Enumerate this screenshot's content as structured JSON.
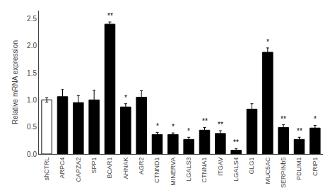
{
  "chart_data": {
    "type": "bar",
    "categories": [
      "shCTRL",
      "ARPC4",
      "CAPZA2",
      "SPP1",
      "BCAR1",
      "AHNAK",
      "AGR2",
      "CTNND1",
      "MINERVA",
      "LGALS3",
      "CTNNA1",
      "ITGAV",
      "LGALS4",
      "GLG1",
      "MUC5AC",
      "SERPINb5",
      "PDLIM1",
      "CRIP1"
    ],
    "values": [
      1.0,
      1.06,
      0.95,
      1.0,
      2.4,
      0.87,
      1.05,
      0.36,
      0.36,
      0.27,
      0.44,
      0.38,
      0.07,
      0.83,
      1.88,
      0.49,
      0.27,
      0.48
    ],
    "errors": [
      0.04,
      0.13,
      0.13,
      0.18,
      0.04,
      0.06,
      0.12,
      0.04,
      0.03,
      0.04,
      0.05,
      0.05,
      0.03,
      0.1,
      0.08,
      0.05,
      0.04,
      0.05
    ],
    "colors": [
      "white",
      "black",
      "black",
      "black",
      "black",
      "black",
      "black",
      "black",
      "black",
      "black",
      "black",
      "black",
      "black",
      "black",
      "black",
      "black",
      "black",
      "black"
    ],
    "annotations": [
      null,
      null,
      null,
      null,
      "**",
      "*",
      null,
      "*",
      "*",
      "*",
      "**",
      "**",
      "**",
      null,
      "*",
      "**",
      "**",
      "*"
    ],
    "ylabel": "Relative mRNA expression",
    "ylim": [
      0,
      2.65
    ],
    "yticks": [
      {
        "value": 0,
        "label": "0.0"
      },
      0.5,
      {
        "value": 1,
        "label": "1.0"
      },
      1.5,
      {
        "value": 2,
        "label": "2.0"
      },
      2.5
    ],
    "grid": false
  }
}
